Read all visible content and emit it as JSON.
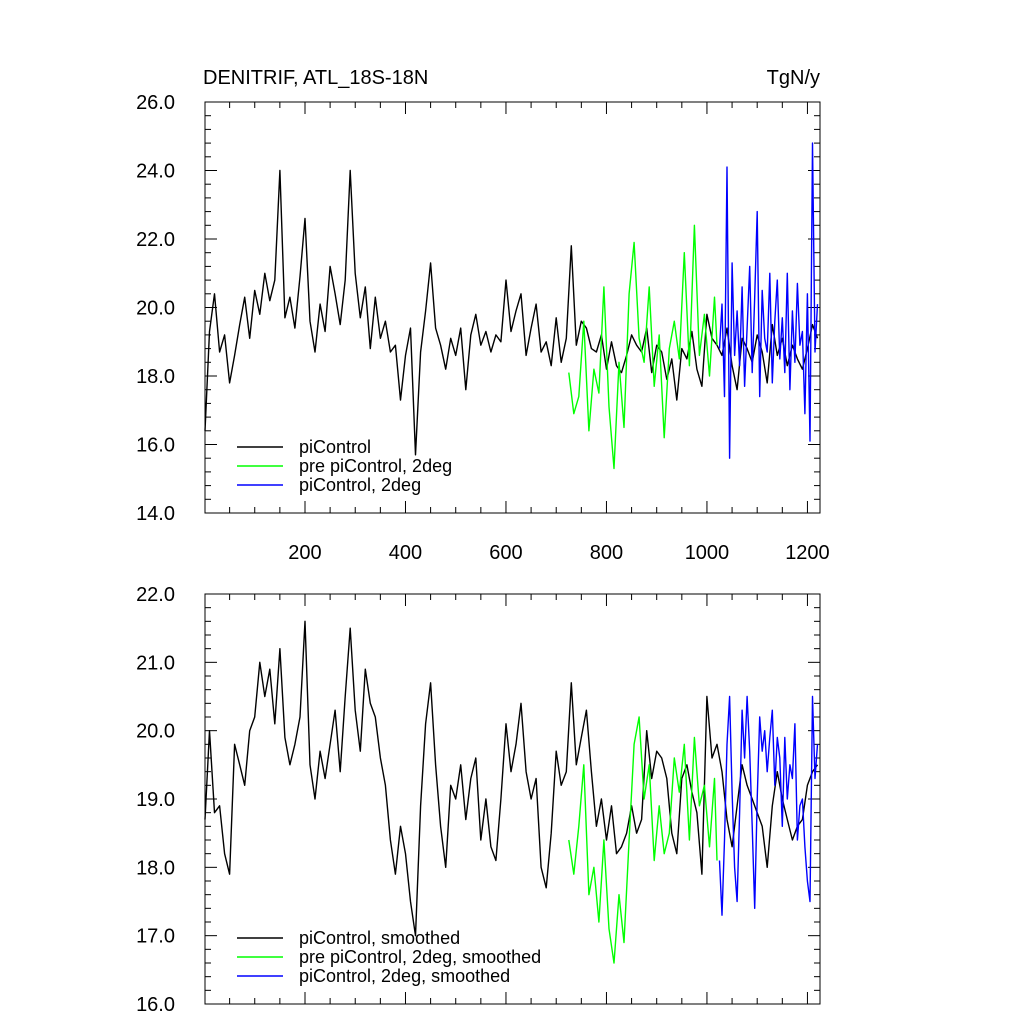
{
  "chart_data": [
    {
      "type": "line",
      "title": "DENITRIF, ATL_18S-18N",
      "units": "TgN/y",
      "xlabel": "",
      "ylabel": "",
      "xlim": [
        1,
        1225
      ],
      "ylim": [
        14.0,
        26.0
      ],
      "y_tick_labels": [
        "14.0",
        "16.0",
        "18.0",
        "20.0",
        "22.0",
        "24.0",
        "26.0"
      ],
      "x_tick_labels": [
        "200",
        "400",
        "600",
        "800",
        "1000",
        "1200"
      ],
      "legend_position": "bottom-left",
      "series": [
        {
          "name": "piControl",
          "color": "#000000",
          "x": [
            1,
            10,
            20,
            30,
            40,
            50,
            60,
            70,
            80,
            90,
            100,
            110,
            120,
            130,
            140,
            150,
            160,
            170,
            180,
            190,
            200,
            210,
            220,
            230,
            240,
            250,
            260,
            270,
            280,
            290,
            300,
            310,
            320,
            330,
            340,
            350,
            360,
            370,
            380,
            390,
            400,
            410,
            420,
            430,
            440,
            450,
            460,
            470,
            480,
            490,
            500,
            510,
            520,
            530,
            540,
            550,
            560,
            570,
            580,
            590,
            600,
            610,
            620,
            630,
            640,
            650,
            660,
            670,
            680,
            690,
            700,
            710,
            720,
            730,
            740,
            750,
            760,
            770,
            780,
            790,
            800,
            810,
            820,
            830,
            840,
            850,
            860,
            870,
            880,
            890,
            900,
            910,
            920,
            930,
            940,
            950,
            960,
            970,
            980,
            990,
            1000,
            1010,
            1020,
            1030,
            1040,
            1050,
            1060,
            1070,
            1080,
            1090,
            1100,
            1110,
            1120,
            1130,
            1140,
            1150,
            1160,
            1170,
            1180,
            1190,
            1200,
            1210,
            1220
          ],
          "values": [
            16.4,
            19.3,
            20.4,
            18.7,
            19.2,
            17.8,
            18.6,
            19.5,
            20.3,
            19.1,
            20.5,
            19.8,
            21.0,
            20.2,
            20.8,
            24.0,
            19.7,
            20.3,
            19.4,
            20.9,
            22.6,
            19.6,
            18.7,
            20.1,
            19.3,
            21.2,
            20.4,
            19.5,
            20.8,
            24.0,
            21.0,
            19.7,
            20.6,
            18.8,
            20.3,
            19.1,
            19.6,
            18.7,
            18.9,
            17.3,
            18.6,
            19.4,
            15.7,
            18.7,
            19.9,
            21.3,
            19.4,
            18.9,
            18.2,
            19.1,
            18.6,
            19.4,
            17.6,
            19.2,
            19.8,
            18.9,
            19.3,
            18.7,
            19.2,
            19.0,
            20.8,
            19.3,
            19.9,
            20.4,
            18.6,
            19.4,
            20.1,
            18.7,
            19.0,
            18.3,
            19.7,
            18.4,
            19.1,
            21.8,
            18.9,
            19.6,
            19.4,
            18.8,
            18.7,
            19.2,
            18.2,
            19.0,
            18.3,
            18.1,
            18.6,
            19.2,
            18.9,
            18.7,
            19.4,
            18.1,
            18.9,
            18.7,
            17.9,
            18.5,
            17.3,
            18.8,
            18.5,
            19.3,
            18.2,
            17.7,
            19.8,
            19.1,
            18.9,
            18.6,
            19.4,
            18.3,
            17.6,
            19.1,
            18.8,
            18.4,
            19.2,
            18.7,
            17.8,
            19.5,
            18.6,
            19.1,
            18.3,
            18.9,
            18.5,
            18.2,
            18.8,
            19.5,
            19.1
          ]
        },
        {
          "name": "pre piControl, 2deg",
          "color": "#00ff00",
          "x": [
            725,
            735,
            745,
            755,
            765,
            775,
            785,
            795,
            805,
            815,
            825,
            835,
            845,
            855,
            865,
            875,
            885,
            895,
            905,
            915,
            925,
            935,
            945,
            955,
            965,
            975,
            985,
            995,
            1005,
            1015,
            1020
          ],
          "values": [
            18.1,
            16.9,
            17.4,
            19.6,
            16.4,
            18.2,
            17.5,
            20.6,
            17.1,
            15.3,
            18.4,
            16.5,
            20.4,
            21.9,
            19.1,
            18.4,
            20.6,
            17.7,
            19.2,
            16.2,
            18.8,
            19.6,
            18.5,
            21.6,
            18.3,
            22.4,
            18.6,
            19.8,
            18.0,
            20.3,
            18.9
          ]
        },
        {
          "name": "piControl, 2deg",
          "color": "#0000ff",
          "x": [
            1025,
            1030,
            1035,
            1040,
            1045,
            1050,
            1055,
            1060,
            1065,
            1070,
            1075,
            1080,
            1085,
            1090,
            1095,
            1100,
            1105,
            1110,
            1115,
            1120,
            1125,
            1130,
            1135,
            1140,
            1145,
            1150,
            1155,
            1160,
            1165,
            1170,
            1175,
            1180,
            1185,
            1190,
            1195,
            1200,
            1205,
            1210,
            1215,
            1220
          ],
          "values": [
            18.8,
            20.1,
            17.4,
            24.1,
            15.6,
            21.3,
            18.6,
            19.9,
            18.3,
            20.6,
            17.7,
            19.4,
            21.2,
            18.1,
            20.3,
            22.8,
            17.4,
            20.5,
            19.1,
            18.7,
            21.0,
            17.8,
            19.6,
            20.8,
            18.5,
            19.7,
            18.1,
            21.0,
            17.6,
            19.9,
            18.4,
            20.7,
            18.9,
            19.3,
            16.9,
            20.4,
            16.1,
            24.8,
            18.7,
            20.1
          ]
        }
      ]
    },
    {
      "type": "line",
      "title": "",
      "xlabel": "",
      "ylabel": "",
      "xlim": [
        1,
        1225
      ],
      "ylim": [
        16.0,
        22.0
      ],
      "y_tick_labels": [
        "16.0",
        "17.0",
        "18.0",
        "19.0",
        "20.0",
        "21.0",
        "22.0"
      ],
      "legend_position": "bottom-left",
      "series": [
        {
          "name": "piControl, smoothed",
          "color": "#000000",
          "x": [
            1,
            10,
            20,
            30,
            40,
            50,
            60,
            70,
            80,
            90,
            100,
            110,
            120,
            130,
            140,
            150,
            160,
            170,
            180,
            190,
            200,
            210,
            220,
            230,
            240,
            250,
            260,
            270,
            280,
            290,
            300,
            310,
            320,
            330,
            340,
            350,
            360,
            370,
            380,
            390,
            400,
            410,
            420,
            430,
            440,
            450,
            460,
            470,
            480,
            490,
            500,
            510,
            520,
            530,
            540,
            550,
            560,
            570,
            580,
            590,
            600,
            610,
            620,
            630,
            640,
            650,
            660,
            670,
            680,
            690,
            700,
            710,
            720,
            730,
            740,
            750,
            760,
            770,
            780,
            790,
            800,
            810,
            820,
            830,
            840,
            850,
            860,
            870,
            880,
            890,
            900,
            910,
            920,
            930,
            940,
            950,
            960,
            970,
            980,
            990,
            1000,
            1010,
            1020,
            1030,
            1040,
            1050,
            1060,
            1070,
            1080,
            1090,
            1100,
            1110,
            1120,
            1130,
            1140,
            1150,
            1160,
            1170,
            1180,
            1190,
            1200,
            1210,
            1220
          ],
          "values": [
            18.7,
            20.0,
            18.8,
            18.9,
            18.2,
            17.9,
            19.8,
            19.5,
            19.2,
            20.0,
            20.2,
            21.0,
            20.5,
            20.9,
            20.1,
            21.2,
            19.9,
            19.5,
            19.8,
            20.2,
            21.6,
            19.5,
            19.0,
            19.7,
            19.3,
            19.8,
            20.3,
            19.4,
            20.5,
            21.5,
            20.3,
            19.7,
            20.9,
            20.4,
            20.2,
            19.6,
            19.2,
            18.4,
            17.9,
            18.6,
            18.2,
            17.5,
            17.0,
            18.9,
            20.1,
            20.7,
            19.5,
            18.6,
            18.0,
            19.2,
            19.0,
            19.5,
            18.7,
            19.3,
            19.6,
            18.4,
            19.0,
            18.3,
            18.1,
            19.0,
            20.1,
            19.4,
            19.8,
            20.4,
            19.4,
            19.0,
            19.3,
            18.0,
            17.7,
            18.5,
            19.7,
            19.2,
            19.4,
            20.7,
            19.5,
            19.9,
            20.3,
            19.4,
            18.6,
            19.0,
            18.4,
            18.9,
            18.2,
            18.3,
            18.5,
            18.9,
            18.5,
            18.7,
            20.0,
            19.3,
            19.7,
            19.6,
            19.3,
            18.5,
            18.2,
            19.3,
            19.5,
            19.1,
            18.8,
            17.9,
            20.5,
            19.6,
            19.8,
            19.4,
            18.7,
            18.3,
            18.9,
            19.5,
            19.2,
            19.0,
            18.8,
            18.6,
            18.0,
            18.9,
            19.4,
            19.0,
            18.7,
            18.4,
            18.6,
            18.7,
            19.2,
            19.4,
            19.5
          ]
        },
        {
          "name": "pre piControl, 2deg, smoothed",
          "color": "#00ff00",
          "x": [
            725,
            735,
            745,
            755,
            765,
            775,
            785,
            795,
            805,
            815,
            825,
            835,
            845,
            855,
            865,
            875,
            885,
            895,
            905,
            915,
            925,
            935,
            945,
            955,
            965,
            975,
            985,
            995,
            1005,
            1015,
            1020
          ],
          "values": [
            18.4,
            17.9,
            18.6,
            19.5,
            17.6,
            18.0,
            17.2,
            18.4,
            17.1,
            16.6,
            17.6,
            16.9,
            18.4,
            19.8,
            20.2,
            19.0,
            19.5,
            18.1,
            18.9,
            18.2,
            18.5,
            19.6,
            19.1,
            19.8,
            18.4,
            19.9,
            18.9,
            19.2,
            18.3,
            19.3,
            18.1
          ]
        },
        {
          "name": "piControl, 2deg, smoothed",
          "color": "#0000ff",
          "x": [
            1025,
            1030,
            1035,
            1040,
            1045,
            1050,
            1055,
            1060,
            1065,
            1070,
            1075,
            1080,
            1085,
            1090,
            1095,
            1100,
            1105,
            1110,
            1115,
            1120,
            1125,
            1130,
            1135,
            1140,
            1145,
            1150,
            1155,
            1160,
            1165,
            1170,
            1175,
            1180,
            1185,
            1190,
            1195,
            1200,
            1205,
            1210,
            1215,
            1220
          ],
          "values": [
            18.1,
            17.3,
            18.4,
            19.8,
            20.5,
            19.1,
            18.0,
            17.5,
            18.8,
            20.3,
            19.6,
            20.5,
            19.7,
            18.6,
            17.4,
            19.0,
            20.2,
            19.7,
            20.0,
            19.4,
            19.9,
            20.3,
            19.2,
            19.9,
            19.6,
            18.6,
            19.9,
            19.0,
            19.5,
            19.3,
            20.1,
            18.4,
            18.9,
            19.0,
            18.3,
            17.8,
            17.5,
            20.5,
            19.3,
            19.8
          ]
        }
      ]
    }
  ]
}
